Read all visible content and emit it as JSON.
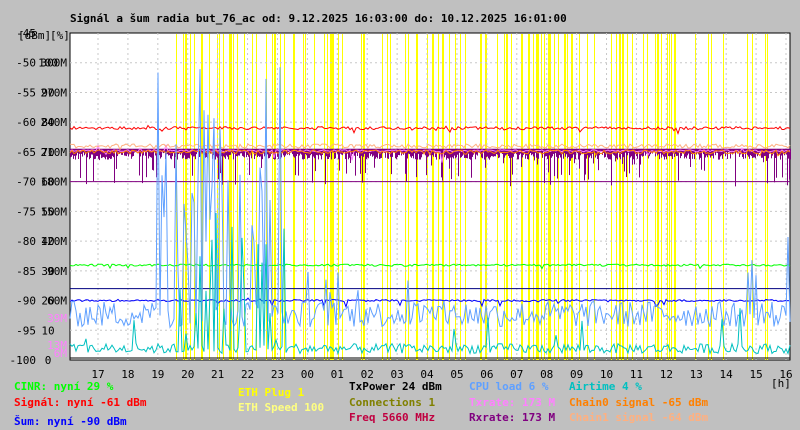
{
  "chart_data": {
    "type": "line",
    "title": "Signál a šum radia but_76_ac od: 9.12.2025 16:03:00 do: 10.12.2025 16:01:00",
    "xlabel": "[h]",
    "x_ticks": [
      "17",
      "18",
      "19",
      "20",
      "21",
      "22",
      "23",
      "00",
      "01",
      "02",
      "03",
      "04",
      "05",
      "06",
      "07",
      "08",
      "09",
      "10",
      "11",
      "12",
      "13",
      "14",
      "15",
      "16"
    ],
    "y_axis_dbm": {
      "unit": "[dBm]",
      "range": [
        -100,
        -45
      ],
      "ticks": [
        "-45",
        "-50",
        "-55",
        "-60",
        "-65",
        "-70",
        "-75",
        "-80",
        "-85",
        "-90",
        "-95",
        "-100"
      ]
    },
    "y_axis_pct": {
      "unit": "[%]",
      "range": [
        0,
        100
      ],
      "ticks": [
        "100",
        "90",
        "80",
        "70",
        "60",
        "50",
        "40",
        "30",
        "20",
        "10",
        "0"
      ]
    },
    "y_axis_rate": {
      "ticks": [
        "300M",
        "270M",
        "240M",
        "210M",
        "180M",
        "150M",
        "120M",
        "90M",
        "60M"
      ]
    },
    "y_axis_small": {
      "ticks": [
        "39M",
        "13M",
        "6M"
      ]
    },
    "series": [
      {
        "name": "CINR",
        "current": "nyní 29 %",
        "axis": "pct",
        "color": "#00ff00",
        "level": 29
      },
      {
        "name": "Signál",
        "current": "nyní -61 dBm",
        "axis": "dbm",
        "color": "#ff0000",
        "level": -61
      },
      {
        "name": "Šum",
        "current": "nyní -90 dBm",
        "axis": "dbm",
        "color": "#0000ff",
        "level": -90
      },
      {
        "name": "TxPower",
        "current": "24 dBm",
        "color": "#000000"
      },
      {
        "name": "Connections",
        "current": "1",
        "color": "#808000"
      },
      {
        "name": "Freq",
        "current": "5660 MHz",
        "color": "#c00040"
      },
      {
        "name": "CPU load",
        "current": "6 %",
        "color": "#60a0ff"
      },
      {
        "name": "Txrate",
        "current": "173 M",
        "color": "#ff80ff",
        "level_pct": 64
      },
      {
        "name": "Rxrate",
        "current": "173 M",
        "color": "#800080",
        "level_pct": 64
      },
      {
        "name": "Airtime",
        "current": "4 %",
        "color": "#00c0c0"
      },
      {
        "name": "Chain0 signal",
        "current": "-65 dBm",
        "axis": "dbm",
        "color": "#ff8000",
        "level": -65
      },
      {
        "name": "Chain1 signal",
        "current": "-64 dBm",
        "axis": "dbm",
        "color": "#ffb080",
        "level": -64
      },
      {
        "name": "ETH Plug",
        "current": "1",
        "color": "#ffff00"
      },
      {
        "name": "ETH Speed",
        "current": "100",
        "color": "#ffff80"
      }
    ],
    "reference_lines_dbm": [
      -70,
      -88
    ],
    "grid": true
  },
  "legend": {
    "cinr": "CINR: nyní 29 %",
    "signal": "Signál: nyní -61 dBm",
    "noise": "Šum: nyní -90 dBm",
    "eth_plug": "ETH Plug 1",
    "eth_speed": "ETH Speed 100",
    "txpower": "TxPower 24 dBm",
    "connections": "Connections 1",
    "freq": "Freq 5660 MHz",
    "cpu": "CPU load 6 %",
    "txrate": "Txrate: 173 M",
    "rxrate": "Rxrate: 173 M",
    "airtime": "Airtime 4 %",
    "chain0": "Chain0 signal -65 dBm",
    "chain1": "Chain1 signal -64 dBm"
  },
  "colors": {
    "cinr": "#00ff00",
    "signal": "#ff0000",
    "noise": "#0000ff",
    "eth_plug": "#ffff00",
    "eth_speed": "#ffff80",
    "txpower": "#000000",
    "connections": "#808000",
    "freq": "#c00040",
    "cpu": "#60a0ff",
    "txrate": "#ff80ff",
    "rxrate": "#800080",
    "airtime": "#00c0c0",
    "chain0": "#ff8000",
    "chain1": "#ffb080"
  }
}
